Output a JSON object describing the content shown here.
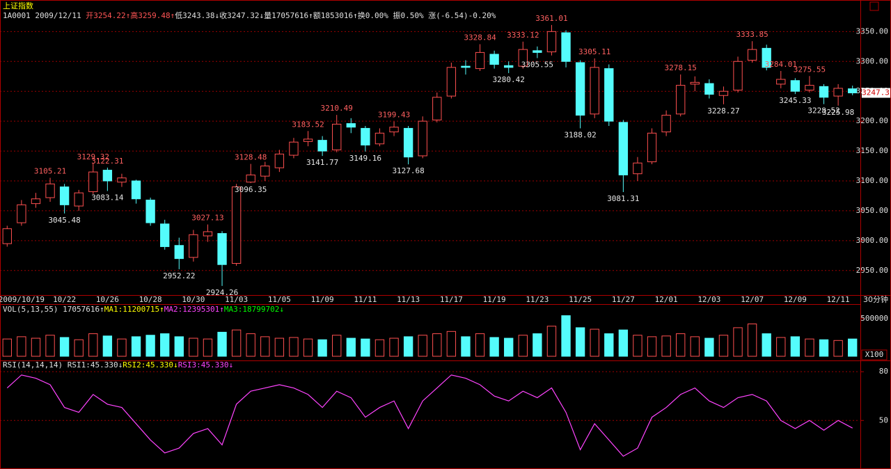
{
  "header": {
    "title": "上证指数",
    "info": [
      "1A0001 2009/12/11 ",
      "开3254.22↑",
      "高3259.48↑",
      "低3243.38↓",
      "收3247.32↓",
      "量17057616↑",
      "额1853016↑",
      "换0.00% ",
      "振0.50% ",
      "涨(-6.54)-0.20%"
    ],
    "info_colors": [
      "#e0e0e0",
      "#ff5555",
      "#ff5555",
      "#e0e0e0",
      "#e0e0e0",
      "#e0e0e0",
      "#e0e0e0",
      "#e0e0e0",
      "#e0e0e0",
      "#e0e0e0"
    ]
  },
  "chart_data": [
    {
      "type": "candlestick",
      "timeframe": "30分钟",
      "last_price_label": "3247.3",
      "up_color": "#ff5050",
      "down_color": "#54fcfc",
      "grid": true,
      "categories": [
        null,
        "2009/10/19",
        null,
        null,
        "10/22",
        null,
        null,
        "10/26",
        null,
        null,
        "10/28",
        null,
        null,
        "10/30",
        null,
        null,
        "11/03",
        null,
        null,
        "11/05",
        null,
        null,
        "11/09",
        null,
        null,
        "11/11",
        null,
        null,
        "11/13",
        null,
        null,
        "11/17",
        null,
        null,
        "11/19",
        null,
        null,
        "11/23",
        null,
        null,
        "11/25",
        null,
        null,
        "11/27",
        null,
        null,
        "12/01",
        null,
        null,
        "12/03",
        null,
        null,
        "12/07",
        null,
        null,
        "12/09",
        null,
        null,
        "12/11",
        null
      ],
      "open": [
        2995,
        3030,
        3062,
        3072,
        3090,
        3058,
        3082,
        3118,
        3098,
        3100,
        3068,
        3028,
        2992,
        2972,
        3008,
        3012,
        2962,
        3098,
        3108,
        3122,
        3143,
        3166,
        3168,
        3152,
        3196,
        3188,
        3162,
        3182,
        3188,
        3142,
        3202,
        3242,
        3292,
        3288,
        3312,
        3293,
        3292,
        3318,
        3316,
        3348,
        3298,
        3212,
        3288,
        3198,
        3112,
        3132,
        3182,
        3212,
        3262,
        3263,
        3243,
        3252,
        3302,
        3322,
        3262,
        3268,
        3252,
        3258,
        3242,
        3254.22
      ],
      "high": [
        3025,
        3068,
        3080,
        3105.21,
        3095,
        3085,
        3129.32,
        3122.31,
        3112,
        3102,
        3072,
        3035,
        3005,
        3018,
        3027.13,
        3016,
        3095,
        3128.48,
        3132,
        3152,
        3172,
        3183.52,
        3175,
        3210.49,
        3205,
        3192,
        3188,
        3199.43,
        3192,
        3208,
        3248,
        3298,
        3302,
        3328.84,
        3318,
        3300,
        3333.12,
        3325,
        3361.01,
        3352,
        3302,
        3305.11,
        3295,
        3202,
        3140,
        3188,
        3218,
        3278.15,
        3275,
        3270,
        3258,
        3308,
        3333.85,
        3328,
        3284.01,
        3272,
        3275.55,
        3262,
        3262,
        3259.48
      ],
      "low": [
        2990,
        3025,
        3055,
        3065,
        3045.48,
        3050,
        3078,
        3083.14,
        3090,
        3062,
        3025,
        2985,
        2952.22,
        2965,
        2998,
        2924.26,
        2958,
        3096.35,
        3100,
        3115,
        3138,
        3158,
        3141.77,
        3148,
        3180,
        3149.16,
        3158,
        3175,
        3127.68,
        3138,
        3198,
        3238,
        3278,
        3284,
        3288,
        3280.42,
        3288,
        3305.55,
        3310,
        3290,
        3188.02,
        3205,
        3192,
        3081.31,
        3100,
        3128,
        3175,
        3208,
        3250,
        3238,
        3228.27,
        3248,
        3298,
        3285,
        3255,
        3245.33,
        3248,
        3228.52,
        3225.98,
        3243.38
      ],
      "close": [
        3020,
        3060,
        3070,
        3095,
        3060,
        3080,
        3115,
        3100,
        3105,
        3070,
        3030,
        2990,
        2970,
        3010,
        3015,
        2960,
        3090,
        3110,
        3125,
        3145,
        3165,
        3170,
        3150,
        3195,
        3190,
        3160,
        3180,
        3190,
        3140,
        3200,
        3240,
        3290,
        3290,
        3315,
        3295,
        3290,
        3320,
        3315,
        3350,
        3300,
        3210,
        3290,
        3200,
        3110,
        3130,
        3180,
        3210,
        3260,
        3265,
        3245,
        3250,
        3300,
        3320,
        3290,
        3270,
        3250,
        3260,
        3240,
        3255,
        3247.32
      ],
      "high_labels": [
        null,
        null,
        null,
        "3105.21",
        null,
        null,
        "3129.32",
        "3122.31",
        null,
        null,
        null,
        null,
        null,
        null,
        "3027.13",
        null,
        null,
        "3128.48",
        null,
        null,
        null,
        "3183.52",
        null,
        "3210.49",
        null,
        null,
        null,
        "3199.43",
        null,
        null,
        null,
        null,
        null,
        "3328.84",
        null,
        null,
        "3333.12",
        null,
        "3361.01",
        null,
        null,
        "3305.11",
        null,
        null,
        null,
        null,
        null,
        "3278.15",
        null,
        null,
        null,
        null,
        "3333.85",
        null,
        "3284.01",
        null,
        "3275.55",
        null,
        null,
        null
      ],
      "low_labels": [
        null,
        null,
        null,
        null,
        "3045.48",
        null,
        null,
        "3083.14",
        null,
        null,
        null,
        null,
        "2952.22",
        null,
        null,
        "2924.26",
        null,
        "3096.35",
        null,
        null,
        null,
        null,
        "3141.77",
        null,
        null,
        "3149.16",
        null,
        null,
        "3127.68",
        null,
        null,
        null,
        null,
        null,
        null,
        "3280.42",
        null,
        "3305.55",
        null,
        null,
        "3188.02",
        null,
        null,
        "3081.31",
        null,
        null,
        null,
        null,
        null,
        null,
        "3228.27",
        null,
        null,
        null,
        null,
        "3245.33",
        null,
        "3228.52",
        "3225.98",
        null
      ],
      "ylim": [
        2909,
        3383
      ],
      "yticks": [
        {
          "value": 2950,
          "label": "2950.00"
        },
        {
          "value": 3000,
          "label": "3000.00"
        },
        {
          "value": 3050,
          "label": "3050.00"
        },
        {
          "value": 3100,
          "label": "3100.00"
        },
        {
          "value": 3150,
          "label": "3150.00"
        },
        {
          "value": 3200,
          "label": "3200.00"
        },
        {
          "value": 3250,
          "label": "3250.00"
        },
        {
          "value": 3300,
          "label": "3300.00"
        },
        {
          "value": 3350,
          "label": "3350.00"
        }
      ]
    },
    {
      "type": "bar",
      "unit_label": "X100",
      "grid": false,
      "header": [
        "VOL(5,13,55) ",
        "17057616↑",
        "MA1:11200715↑",
        "MA2:12395301↑",
        "MA3:18799702↓"
      ],
      "header_colors": [
        "#e0e0e0",
        "#e0e0e0",
        "#ffff00",
        "#ff44ff",
        "#00ff00"
      ],
      "values": [
        230000,
        260000,
        240000,
        280000,
        250000,
        220000,
        300000,
        270000,
        230000,
        260000,
        280000,
        300000,
        260000,
        240000,
        230000,
        320000,
        350000,
        300000,
        260000,
        240000,
        250000,
        230000,
        220000,
        280000,
        240000,
        230000,
        220000,
        240000,
        260000,
        280000,
        300000,
        330000,
        260000,
        300000,
        250000,
        240000,
        280000,
        300000,
        400000,
        540000,
        380000,
        360000,
        300000,
        350000,
        280000,
        260000,
        270000,
        300000,
        260000,
        240000,
        280000,
        380000,
        430000,
        300000,
        250000,
        260000,
        230000,
        220000,
        210000,
        230000
      ],
      "ylim": [
        0,
        555000
      ],
      "yticks": [
        500000
      ]
    },
    {
      "type": "line",
      "color": "#ff44ff",
      "grid": true,
      "header": [
        "RSI(14,14,14) ",
        "RSI1:45.330↓",
        "RSI2:45.330↓",
        "RSI3:45.330↓"
      ],
      "header_colors": [
        "#e0e0e0",
        "#e0e0e0",
        "#ffff00",
        "#ff44ff"
      ],
      "values": [
        70,
        78,
        76,
        72,
        58,
        55,
        66,
        60,
        58,
        48,
        38,
        30,
        33,
        42,
        45,
        35,
        60,
        68,
        70,
        72,
        70,
        66,
        58,
        68,
        64,
        52,
        58,
        62,
        45,
        62,
        70,
        78,
        76,
        72,
        65,
        62,
        68,
        64,
        70,
        55,
        32,
        48,
        38,
        28,
        33,
        52,
        58,
        66,
        70,
        62,
        58,
        64,
        66,
        62,
        50,
        45,
        50,
        44,
        50,
        45.33
      ],
      "ylim": [
        21,
        86.5
      ],
      "yticks": [
        50,
        80
      ]
    }
  ]
}
